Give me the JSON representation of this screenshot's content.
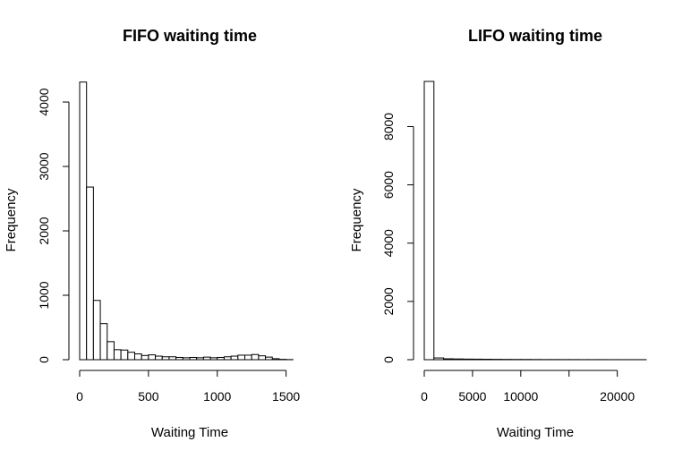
{
  "chart_data": [
    {
      "type": "bar",
      "title": "FIFO waiting time",
      "xlabel": "Waiting Time",
      "ylabel": "Frequency",
      "xlim": [
        0,
        1600
      ],
      "ylim": [
        0,
        4320
      ],
      "xticks": [
        0,
        500,
        1000,
        1500
      ],
      "xtick_labels": [
        "0",
        "500",
        "1000",
        "1500"
      ],
      "yticks": [
        0,
        1000,
        2000,
        3000,
        4000
      ],
      "ytick_labels": [
        "0",
        "1000",
        "2000",
        "3000",
        "4000"
      ],
      "bin_width": 50,
      "bin_starts": [
        0,
        50,
        100,
        150,
        200,
        250,
        300,
        350,
        400,
        450,
        500,
        550,
        600,
        650,
        700,
        750,
        800,
        850,
        900,
        950,
        1000,
        1050,
        1100,
        1150,
        1200,
        1250,
        1300,
        1350,
        1400,
        1450,
        1500,
        1550
      ],
      "values": [
        4310,
        2680,
        920,
        560,
        280,
        155,
        150,
        115,
        90,
        65,
        75,
        55,
        45,
        45,
        35,
        30,
        35,
        30,
        40,
        30,
        35,
        45,
        55,
        70,
        70,
        80,
        60,
        40,
        15,
        5,
        2,
        0
      ]
    },
    {
      "type": "bar",
      "title": "LIFO waiting time",
      "xlabel": "Waiting Time",
      "ylabel": "Frequency",
      "xlim": [
        0,
        23000
      ],
      "ylim": [
        0,
        9550
      ],
      "xticks": [
        0,
        5000,
        10000,
        15000,
        20000
      ],
      "xtick_labels": [
        "0",
        "5000",
        "10000",
        "",
        "20000"
      ],
      "yticks": [
        0,
        2000,
        4000,
        6000,
        8000
      ],
      "ytick_labels": [
        "0",
        "2000",
        "4000",
        "6000",
        "8000"
      ],
      "bin_width": 1000,
      "bin_starts": [
        0,
        1000,
        2000,
        3000,
        4000,
        5000,
        6000,
        7000,
        8000,
        9000,
        10000,
        11000,
        12000,
        13000,
        14000,
        15000,
        16000,
        17000,
        18000,
        19000,
        20000,
        21000,
        22000
      ],
      "values": [
        9550,
        60,
        30,
        25,
        20,
        18,
        15,
        12,
        10,
        8,
        8,
        6,
        5,
        5,
        4,
        4,
        3,
        3,
        3,
        2,
        2,
        2,
        2
      ]
    }
  ]
}
